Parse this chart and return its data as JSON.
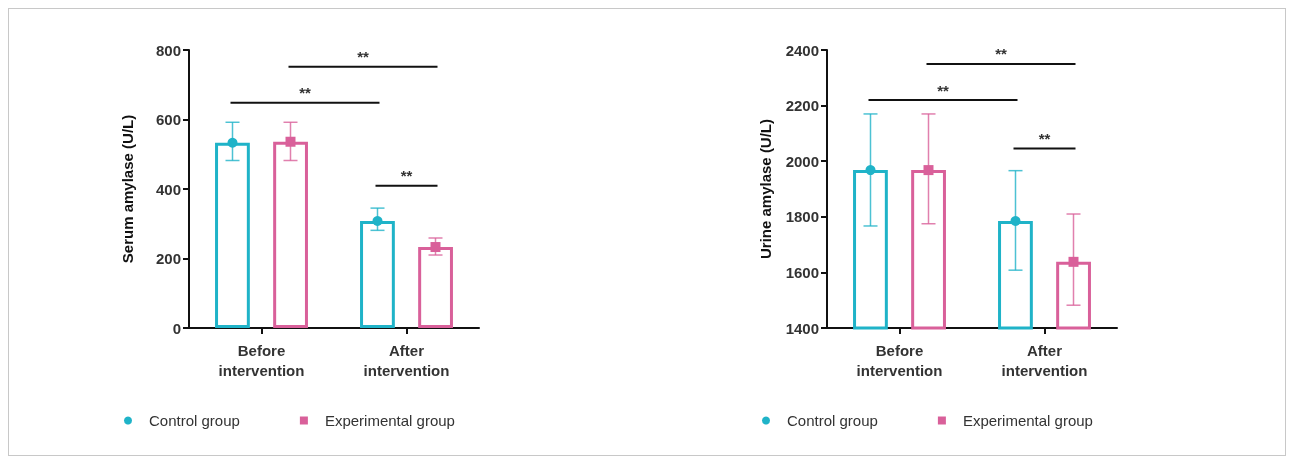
{
  "chart_data": [
    {
      "type": "bar",
      "ylabel": "Serum amylase (U/L)",
      "categories": [
        "Before intervention",
        "After intervention"
      ],
      "ylim": [
        0,
        800
      ],
      "yticks": [
        0,
        200,
        400,
        600,
        800
      ],
      "grid": false,
      "legend": "bottom",
      "series": [
        {
          "color": "#1fb3c8",
          "values": [
            533,
            308
          ],
          "errors": [
            [
              482,
              592
            ],
            [
              281,
              345
            ]
          ]
        },
        {
          "color": "#d9609a",
          "values": [
            536,
            233
          ],
          "errors": [
            [
              482,
              592
            ],
            [
              210,
              259
            ]
          ]
        },
        {
          "type": "scatter",
          "name": "Control group",
          "color": "#1fb3c8",
          "marker": "circle",
          "x": [
            "Before intervention",
            "After intervention"
          ],
          "values": [
            533,
            308
          ]
        },
        {
          "type": "scatter",
          "name": "Experimental group",
          "color": "#d9609a",
          "marker": "square",
          "x": [
            "Before intervention",
            "After intervention"
          ],
          "values": [
            536,
            233
          ]
        }
      ],
      "annotations": [
        "**",
        "**",
        "**"
      ]
    },
    {
      "type": "bar",
      "ylabel": "Urine amylase (U/L)",
      "categories": [
        "Before intervention",
        "After intervention"
      ],
      "ylim": [
        1400,
        2400
      ],
      "yticks": [
        1400,
        1600,
        1800,
        2000,
        2200,
        2400
      ],
      "grid": false,
      "legend": "bottom",
      "series": [
        {
          "color": "#1fb3c8",
          "values": [
            1968,
            1785
          ],
          "errors": [
            [
              1767,
              2170
            ],
            [
              1608,
              1966
            ]
          ]
        },
        {
          "color": "#d9609a",
          "values": [
            1968,
            1638
          ],
          "errors": [
            [
              1775,
              2170
            ],
            [
              1482,
              1810
            ]
          ]
        },
        {
          "type": "scatter",
          "name": "Control group",
          "color": "#1fb3c8",
          "marker": "circle",
          "x": [
            "Before intervention",
            "After intervention"
          ],
          "values": [
            1968,
            1785
          ]
        },
        {
          "type": "scatter",
          "name": "Experimental group",
          "color": "#d9609a",
          "marker": "square",
          "x": [
            "Before intervention",
            "After intervention"
          ],
          "values": [
            1968,
            1638
          ]
        }
      ],
      "annotations": [
        "**",
        "**",
        "**"
      ]
    }
  ]
}
